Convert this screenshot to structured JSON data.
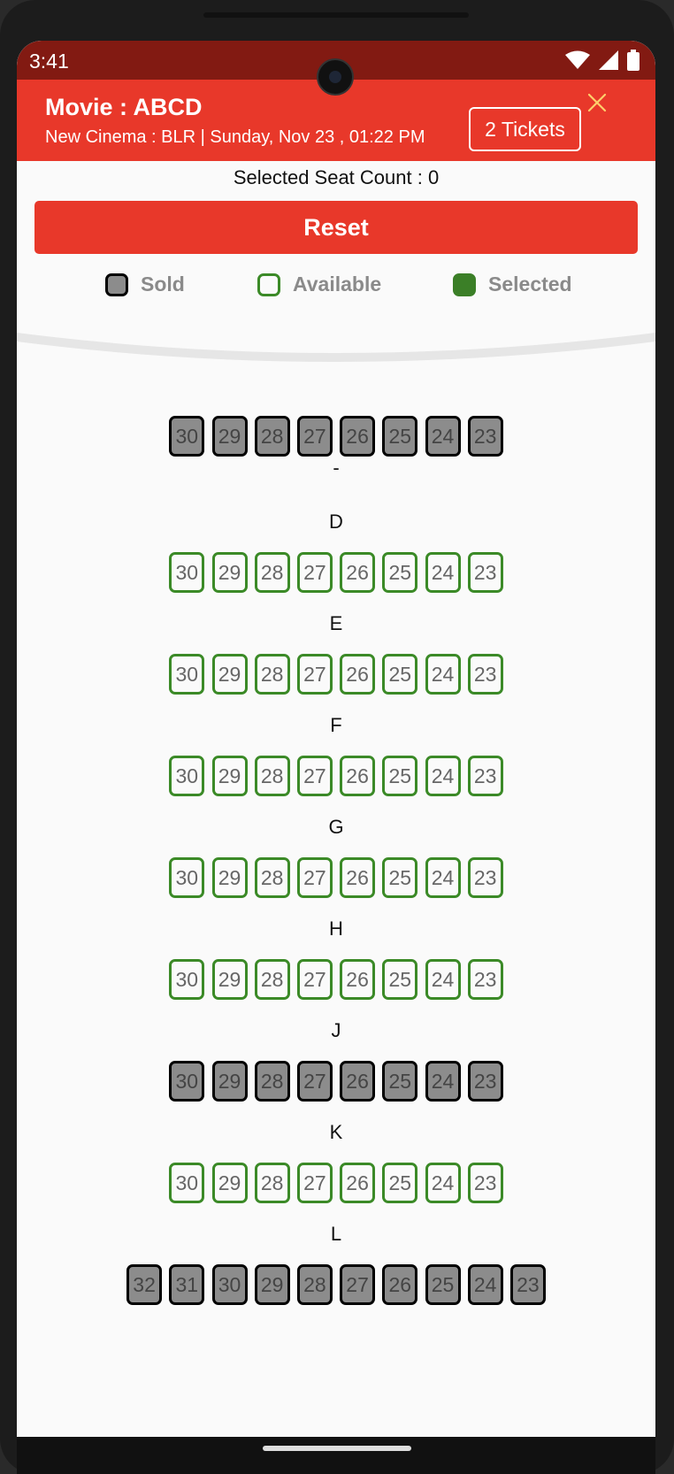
{
  "status_bar": {
    "time": "3:41"
  },
  "header": {
    "movie_title": "Movie : ABCD",
    "cinema_line": "New Cinema : BLR | Sunday, Nov 23 , 01:22 PM",
    "tickets_label": "2 Tickets",
    "close_icon": "close-icon"
  },
  "selection": {
    "seat_count_label": "Selected Seat Count  : 0"
  },
  "reset_label": "Reset",
  "legend": [
    {
      "key": "sold",
      "label": "Sold",
      "color": "#8c8c8c"
    },
    {
      "key": "available",
      "label": "Available",
      "color": "#3b8a27"
    },
    {
      "key": "selected",
      "label": "Selected",
      "color": "#3b7f27"
    }
  ],
  "colors": {
    "accent": "#e8382a",
    "status_bar": "#821a12",
    "available": "#3b8a27",
    "sold": "#8c8c8c"
  },
  "rows": [
    {
      "label": "",
      "status": "sold",
      "seats": [
        "30",
        "29",
        "28",
        "27",
        "26",
        "25",
        "24",
        "23"
      ]
    },
    {
      "label": "-",
      "status": "none",
      "seats": []
    },
    {
      "label": "D",
      "status": "available",
      "seats": [
        "30",
        "29",
        "28",
        "27",
        "26",
        "25",
        "24",
        "23"
      ]
    },
    {
      "label": "E",
      "status": "available",
      "seats": [
        "30",
        "29",
        "28",
        "27",
        "26",
        "25",
        "24",
        "23"
      ]
    },
    {
      "label": "F",
      "status": "available",
      "seats": [
        "30",
        "29",
        "28",
        "27",
        "26",
        "25",
        "24",
        "23"
      ]
    },
    {
      "label": "G",
      "status": "available",
      "seats": [
        "30",
        "29",
        "28",
        "27",
        "26",
        "25",
        "24",
        "23"
      ]
    },
    {
      "label": "H",
      "status": "available",
      "seats": [
        "30",
        "29",
        "28",
        "27",
        "26",
        "25",
        "24",
        "23"
      ]
    },
    {
      "label": "J",
      "status": "sold",
      "seats": [
        "30",
        "29",
        "28",
        "27",
        "26",
        "25",
        "24",
        "23"
      ]
    },
    {
      "label": "K",
      "status": "available",
      "seats": [
        "30",
        "29",
        "28",
        "27",
        "26",
        "25",
        "24",
        "23"
      ]
    },
    {
      "label": "L",
      "status": "sold",
      "seats": [
        "32",
        "31",
        "30",
        "29",
        "28",
        "27",
        "26",
        "25",
        "24",
        "23"
      ]
    }
  ]
}
